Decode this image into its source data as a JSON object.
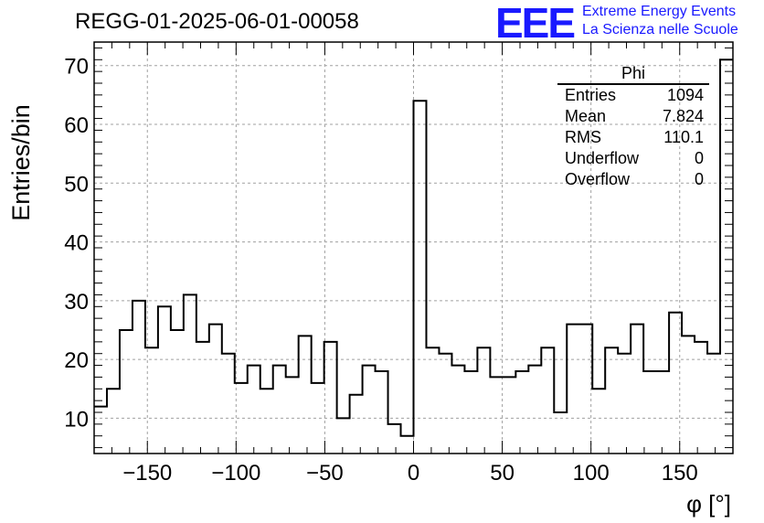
{
  "header": {
    "title": "REGG-01-2025-06-01-00058",
    "logo_mark": "EEE",
    "logo_line1": "Extreme Energy Events",
    "logo_line2": "La Scienza nelle Scuole"
  },
  "stats_box": {
    "title": "Phi",
    "rows": [
      {
        "label": "Entries",
        "value": "1094"
      },
      {
        "label": "Mean",
        "value": "7.824"
      },
      {
        "label": "RMS",
        "value": "110.1"
      },
      {
        "label": "Underflow",
        "value": "0"
      },
      {
        "label": "Overflow",
        "value": "0"
      }
    ]
  },
  "colors": {
    "line": "#000000",
    "grid": "#a0a0a0",
    "logo": "#1a1aff"
  },
  "chart_data": {
    "type": "histogram",
    "title": "REGG-01-2025-06-01-00058",
    "xlabel": "φ [°]",
    "ylabel": "Entries/bin",
    "xlim": [
      -180,
      180
    ],
    "ylim": [
      4,
      74
    ],
    "bin_edges_start": -180,
    "bin_width": 7.2,
    "values": [
      12,
      15,
      25,
      30,
      22,
      29,
      25,
      31,
      23,
      26,
      21,
      16,
      19,
      15,
      19,
      17,
      24,
      16,
      23,
      10,
      14,
      19,
      18,
      9,
      7,
      64,
      22,
      21,
      19,
      18,
      22,
      17,
      17,
      18,
      19,
      22,
      11,
      26,
      26,
      15,
      22,
      21,
      26,
      18,
      18,
      28,
      24,
      23,
      21,
      71
    ],
    "x_ticks": [
      -150,
      -100,
      -50,
      0,
      50,
      100,
      150
    ],
    "x_tick_labels": [
      "−150",
      "−100",
      "−50",
      "0",
      "50",
      "100",
      "150"
    ],
    "y_ticks": [
      10,
      20,
      30,
      40,
      50,
      60,
      70
    ],
    "y_tick_labels": [
      "10",
      "20",
      "30",
      "40",
      "50",
      "60",
      "70"
    ],
    "grid": true
  }
}
